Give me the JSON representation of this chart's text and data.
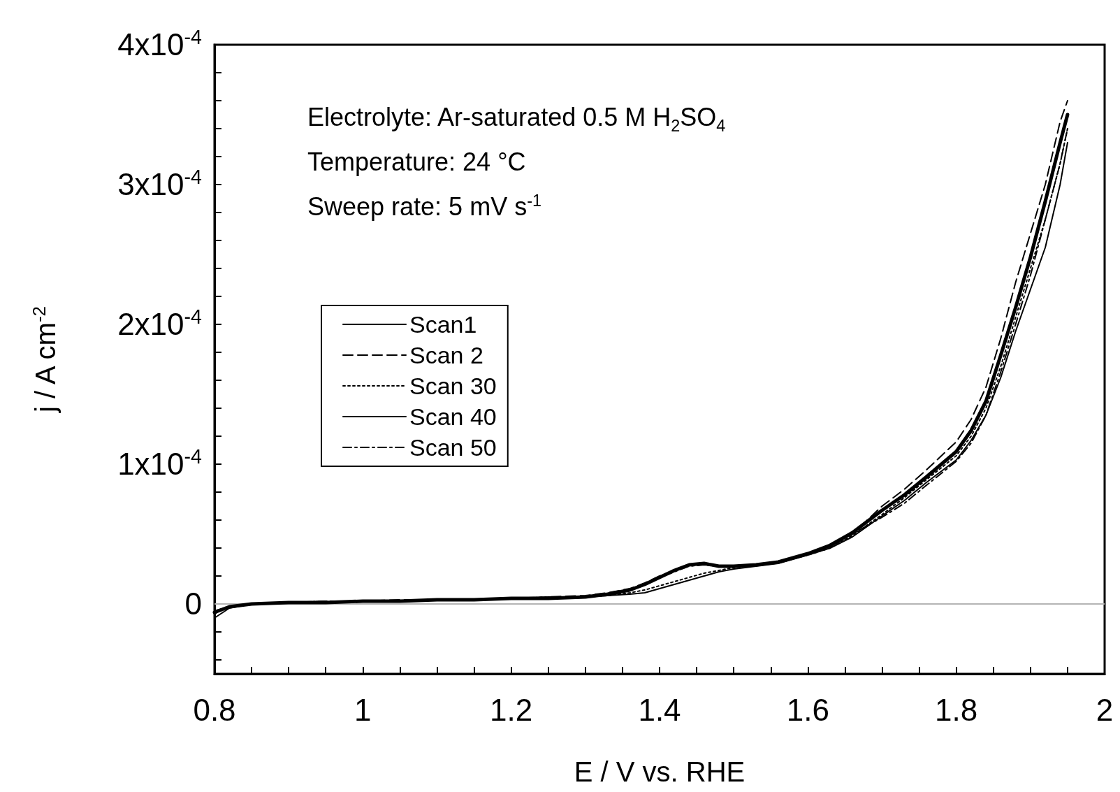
{
  "chart_data": {
    "type": "line",
    "annotations": [
      "Electrolyte: Ar-saturated 0.5 M H$_{2}$SO$_{4}$",
      "Temperature: 24 °C",
      "Sweep rate: 5 mV s$^{-1}$"
    ],
    "xlabel": "E / V vs. RHE",
    "ylabel": "j / A cm$^{-2}$",
    "x": [
      0.8,
      0.82,
      0.85,
      0.9,
      0.95,
      1.0,
      1.05,
      1.1,
      1.15,
      1.2,
      1.25,
      1.3,
      1.33,
      1.36,
      1.38,
      1.4,
      1.42,
      1.44,
      1.46,
      1.48,
      1.5,
      1.53,
      1.56,
      1.6,
      1.63,
      1.66,
      1.7,
      1.73,
      1.76,
      1.8,
      1.82,
      1.84,
      1.86,
      1.88,
      1.9,
      1.92,
      1.94,
      1.95
    ],
    "series": [
      {
        "name": "Scan1",
        "color": "#000000",
        "line_style": "solid",
        "values": [
          -1e-05,
          -3e-06,
          0.0,
          1e-06,
          1e-06,
          2e-06,
          2e-06,
          3e-06,
          3e-06,
          4e-06,
          4e-06,
          5e-06,
          6e-06,
          7e-06,
          8e-06,
          1.1e-05,
          1.4e-05,
          1.7e-05,
          2e-05,
          2.3e-05,
          2.5e-05,
          2.7e-05,
          2.9e-05,
          3.5e-05,
          4e-05,
          4.8e-05,
          6.3e-05,
          7.4e-05,
          8.7e-05,
          0.000103,
          0.000117,
          0.000135,
          0.000162,
          0.000195,
          0.000225,
          0.000255,
          0.0003,
          0.00033
        ]
      },
      {
        "name": "Scan 2",
        "color": "#000000",
        "line_style": "dashed",
        "values": [
          -5e-06,
          -2e-06,
          0.0,
          1e-06,
          2e-06,
          2e-06,
          3e-06,
          3e-06,
          3e-06,
          4e-06,
          5e-06,
          6e-06,
          8e-06,
          1.1e-05,
          1.5e-05,
          2e-05,
          2.4e-05,
          2.8e-05,
          2.8e-05,
          2.7e-05,
          2.7e-05,
          2.8e-05,
          3e-05,
          3.6e-05,
          4.1e-05,
          5e-05,
          7e-05,
          8.2e-05,
          9.6e-05,
          0.000116,
          0.000132,
          0.000155,
          0.00019,
          0.00023,
          0.000265,
          0.0003,
          0.000345,
          0.00036
        ]
      },
      {
        "name": "Scan 30",
        "color": "#000000",
        "line_style": "dotted",
        "values": [
          -7e-06,
          -2e-06,
          0.0,
          1e-06,
          1e-06,
          2e-06,
          2e-06,
          3e-06,
          3e-06,
          4e-06,
          4e-06,
          5e-06,
          6e-06,
          8e-06,
          1e-05,
          1.3e-05,
          1.6e-05,
          1.9e-05,
          2.2e-05,
          2.4e-05,
          2.6e-05,
          2.8e-05,
          3e-05,
          3.5e-05,
          4e-05,
          4.9e-05,
          6.4e-05,
          7.6e-05,
          8.9e-05,
          0.000106,
          0.00012,
          0.00014,
          0.00017,
          0.000205,
          0.00024,
          0.000275,
          0.000315,
          0.00034
        ]
      },
      {
        "name": "Scan 40",
        "color": "#000000",
        "line_style": "solid",
        "values": [
          -6e-06,
          -2e-06,
          0.0,
          1e-06,
          1e-06,
          2e-06,
          2e-06,
          3e-06,
          3e-06,
          4e-06,
          4e-06,
          5e-06,
          7e-06,
          1e-05,
          1.4e-05,
          1.9e-05,
          2.4e-05,
          2.8e-05,
          2.9e-05,
          2.7e-05,
          2.7e-05,
          2.8e-05,
          3e-05,
          3.6e-05,
          4.2e-05,
          5.1e-05,
          6.7e-05,
          7.8e-05,
          9.1e-05,
          0.000109,
          0.000124,
          0.000145,
          0.000178,
          0.000212,
          0.000248,
          0.000288,
          0.00033,
          0.00035
        ]
      },
      {
        "name": "Scan 50",
        "color": "#000000",
        "line_style": "dashdot",
        "values": [
          -5e-06,
          -2e-06,
          0.0,
          1e-06,
          2e-06,
          2e-06,
          2e-06,
          3e-06,
          3e-06,
          4e-06,
          5e-06,
          5e-06,
          7e-06,
          1e-05,
          1.4e-05,
          1.9e-05,
          2.3e-05,
          2.7e-05,
          2.8e-05,
          2.7e-05,
          2.7e-05,
          2.8e-05,
          3e-05,
          3.6e-05,
          4.1e-05,
          5e-05,
          6.2e-05,
          7.2e-05,
          8.5e-05,
          0.000102,
          0.000115,
          0.000135,
          0.000166,
          0.0002,
          0.000235,
          0.000275,
          0.000315,
          0.00034
        ]
      }
    ],
    "xlim": [
      0.8,
      2
    ],
    "xticks": [
      0.8,
      {
        "value": 0.85,
        "label": null
      },
      {
        "value": 0.9,
        "label": null
      },
      {
        "value": 0.95,
        "label": null
      },
      1,
      {
        "value": 1.05,
        "label": null
      },
      {
        "value": 1.1,
        "label": null
      },
      {
        "value": 1.15,
        "label": null
      },
      1.2,
      {
        "value": 1.25,
        "label": null
      },
      {
        "value": 1.3,
        "label": null
      },
      {
        "value": 1.35,
        "label": null
      },
      1.4,
      {
        "value": 1.45,
        "label": null
      },
      {
        "value": 1.5,
        "label": null
      },
      {
        "value": 1.55,
        "label": null
      },
      1.6,
      {
        "value": 1.65,
        "label": null
      },
      {
        "value": 1.7,
        "label": null
      },
      {
        "value": 1.75,
        "label": null
      },
      1.8,
      {
        "value": 1.85,
        "label": null
      },
      {
        "value": 1.9,
        "label": null
      },
      {
        "value": 1.95,
        "label": null
      },
      2
    ],
    "ylim": [
      -5e-05,
      0.0004
    ],
    "yticks": [
      {
        "value": -4e-05,
        "label": null
      },
      {
        "value": -2e-05,
        "label": null
      },
      0,
      {
        "value": 2e-05,
        "label": null
      },
      {
        "value": 4e-05,
        "label": null
      },
      {
        "value": 6e-05,
        "label": null
      },
      {
        "value": 8e-05,
        "label": null
      },
      {
        "value": 0.0001,
        "label": "1x10$^{-4}$"
      },
      {
        "value": 0.00012,
        "label": null
      },
      {
        "value": 0.00014,
        "label": null
      },
      {
        "value": 0.00016,
        "label": null
      },
      {
        "value": 0.00018,
        "label": null
      },
      {
        "value": 0.0002,
        "label": "2x10$^{-4}$"
      },
      {
        "value": 0.00022,
        "label": null
      },
      {
        "value": 0.00024,
        "label": null
      },
      {
        "value": 0.00026,
        "label": null
      },
      {
        "value": 0.00028,
        "label": null
      },
      {
        "value": 0.0003,
        "label": "3x10$^{-4}$"
      },
      {
        "value": 0.00032,
        "label": null
      },
      {
        "value": 0.00034,
        "label": null
      },
      {
        "value": 0.00036,
        "label": null
      },
      {
        "value": 0.00038,
        "label": null
      },
      {
        "value": 0.0004,
        "label": "4x10$^{-4}$"
      }
    ],
    "ref_lines": [
      {
        "axis": "y",
        "value": 0,
        "color": "#b4b4b4"
      }
    ],
    "grid": false,
    "legend": "left",
    "marker": "none"
  }
}
